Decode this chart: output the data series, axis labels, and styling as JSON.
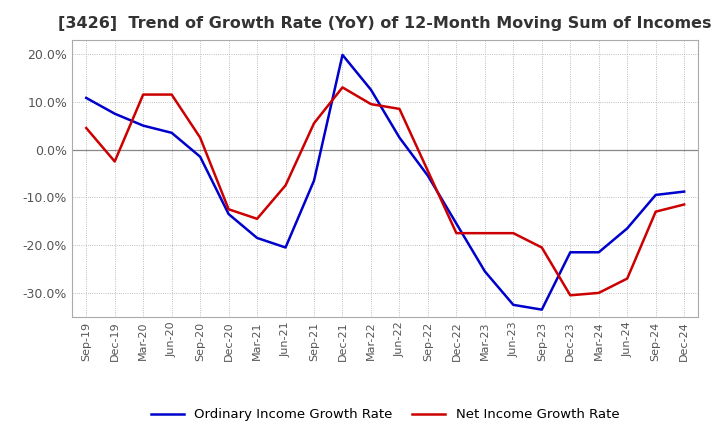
{
  "title": "[3426]  Trend of Growth Rate (YoY) of 12-Month Moving Sum of Incomes",
  "title_fontsize": 11.5,
  "ylim": [
    -0.35,
    0.23
  ],
  "yticks": [
    -0.3,
    -0.2,
    -0.1,
    0.0,
    0.1,
    0.2
  ],
  "background_color": "#ffffff",
  "grid_color": "#aaaaaa",
  "ordinary_color": "#0000cc",
  "net_color": "#cc0000",
  "legend_labels": [
    "Ordinary Income Growth Rate",
    "Net Income Growth Rate"
  ],
  "x_labels": [
    "Sep-19",
    "Dec-19",
    "Mar-20",
    "Jun-20",
    "Sep-20",
    "Dec-20",
    "Mar-21",
    "Jun-21",
    "Sep-21",
    "Dec-21",
    "Mar-22",
    "Jun-22",
    "Sep-22",
    "Dec-22",
    "Mar-23",
    "Jun-23",
    "Sep-23",
    "Dec-23",
    "Mar-24",
    "Jun-24",
    "Sep-24",
    "Dec-24"
  ],
  "ordinary": [
    0.108,
    0.075,
    0.05,
    0.035,
    -0.015,
    -0.135,
    -0.185,
    -0.205,
    -0.065,
    0.198,
    0.125,
    0.025,
    -0.055,
    -0.155,
    -0.255,
    -0.325,
    -0.335,
    -0.215,
    -0.215,
    -0.165,
    -0.095,
    -0.088
  ],
  "net": [
    0.045,
    -0.025,
    0.115,
    0.115,
    0.025,
    -0.125,
    -0.145,
    -0.075,
    0.055,
    0.13,
    0.095,
    0.085,
    -0.045,
    -0.175,
    -0.175,
    -0.175,
    -0.205,
    -0.305,
    -0.3,
    -0.27,
    -0.13,
    -0.115
  ]
}
